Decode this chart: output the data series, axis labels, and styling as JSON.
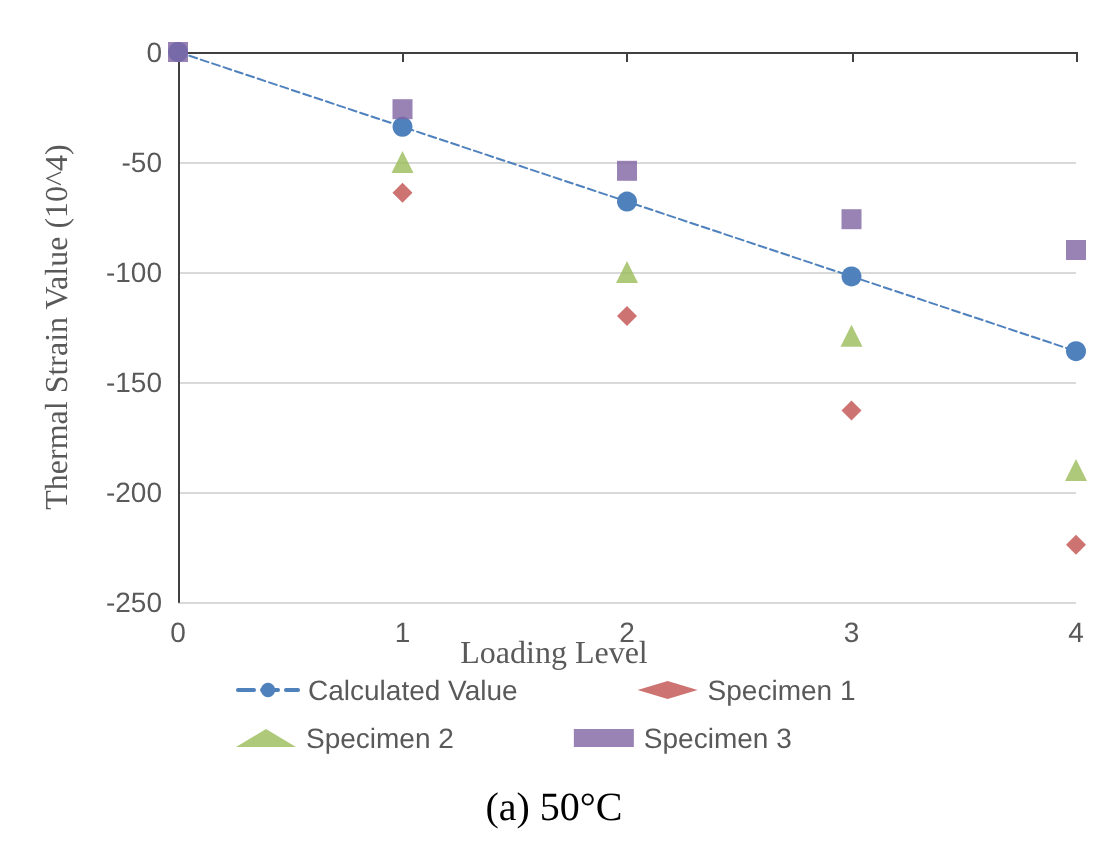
{
  "chart_data": {
    "type": "scatter",
    "title": "(a) 50°C",
    "xlabel": "Loading Level",
    "ylabel": "Thermal Strain Value (10^4)",
    "x": [
      0,
      1,
      2,
      3,
      4
    ],
    "series": [
      {
        "name": "Calculated Value",
        "type": "line",
        "color": "#4f81bd",
        "marker": "circle",
        "line_style": "dashed",
        "values": [
          0,
          -34,
          -68,
          -102,
          -136
        ]
      },
      {
        "name": "Specimen 1",
        "color": "#c0504d",
        "marker": "diamond",
        "values": [
          null,
          -64,
          -120,
          -163,
          -224
        ]
      },
      {
        "name": "Specimen 2",
        "color": "#9bbb59",
        "marker": "triangle",
        "values": [
          null,
          -50,
          -100,
          -129,
          -190
        ]
      },
      {
        "name": "Specimen 3",
        "color": "#8064a2",
        "marker": "square",
        "values": [
          0,
          -26,
          -54,
          -76,
          -90
        ]
      }
    ],
    "xlim": [
      0,
      4
    ],
    "xticks": [
      0,
      1,
      2,
      3,
      4
    ],
    "ylim": [
      -250,
      0
    ],
    "yticks": [
      0,
      -50,
      -100,
      -150,
      -200,
      -250
    ],
    "grid": "y",
    "legend": "bottom"
  }
}
